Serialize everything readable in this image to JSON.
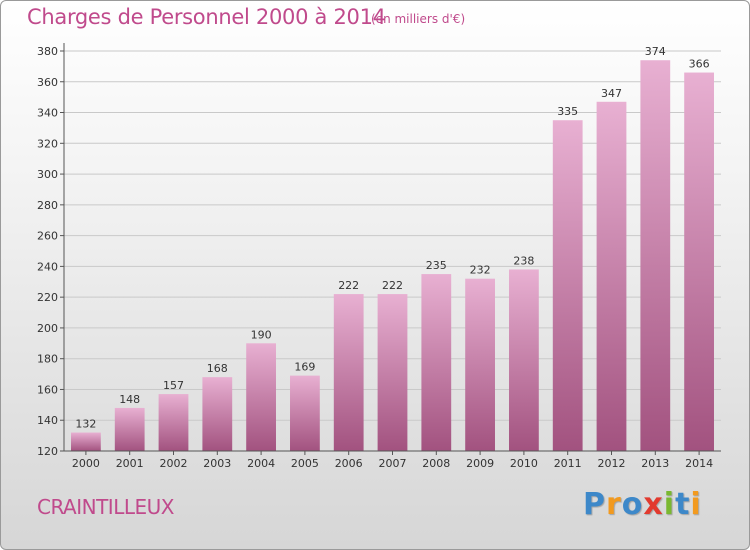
{
  "title": "Charges de Personnel 2000 à 2014",
  "subtitle": "(en milliers d'€)",
  "town": "CRAINTILLEUX",
  "logo": {
    "text": "Proxiti",
    "letters": [
      "P",
      "r",
      "o",
      "x",
      "i",
      "t",
      "i"
    ],
    "colors": [
      "#3d88c9",
      "#f29a1f",
      "#3d88c9",
      "#e23a2e",
      "#7ab830",
      "#3d88c9",
      "#f29a1f"
    ]
  },
  "colors": {
    "bar_light": "#e8b0d2",
    "bar_dark": "#a2527f",
    "title": "#c04a8c"
  },
  "chart_data": {
    "type": "bar",
    "title": "Charges de Personnel 2000 à 2014",
    "unit": "(en milliers d'€)",
    "categories": [
      "2000",
      "2001",
      "2002",
      "2003",
      "2004",
      "2005",
      "2006",
      "2007",
      "2008",
      "2009",
      "2010",
      "2011",
      "2012",
      "2013",
      "2014"
    ],
    "values": [
      132,
      148,
      157,
      168,
      190,
      169,
      222,
      222,
      235,
      232,
      238,
      335,
      347,
      374,
      366
    ],
    "ylim": [
      120,
      380
    ],
    "yticks": [
      120,
      140,
      160,
      180,
      200,
      220,
      240,
      260,
      280,
      300,
      320,
      340,
      360,
      380
    ],
    "grid": true,
    "xlabel": "",
    "ylabel": ""
  }
}
